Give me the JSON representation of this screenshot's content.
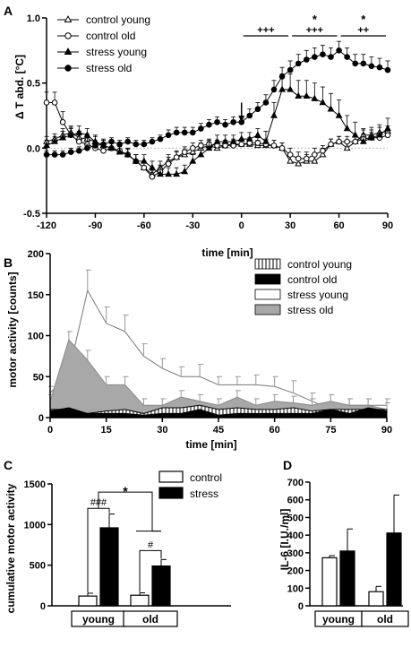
{
  "panel_labels": {
    "a": "A",
    "b": "B",
    "c": "C",
    "d": "D"
  },
  "chart_data": [
    {
      "id": "A",
      "type": "line",
      "xlabel": "time [min]",
      "ylabel": "Δ T abd. [°C]",
      "xlim": [
        -120,
        90
      ],
      "ylim": [
        -0.5,
        1.0
      ],
      "x_ticks": [
        "-120",
        "-90",
        "-60",
        "-30",
        "0",
        "30",
        "60",
        "90"
      ],
      "y_ticks": [
        "-0.5",
        "0.0",
        "0.5",
        "1.0"
      ],
      "x": [
        -120,
        -115,
        -110,
        -105,
        -100,
        -95,
        -90,
        -85,
        -80,
        -75,
        -70,
        -65,
        -60,
        -55,
        -50,
        -45,
        -40,
        -35,
        -30,
        -25,
        -20,
        -15,
        -10,
        -5,
        0,
        5,
        10,
        15,
        20,
        25,
        30,
        35,
        40,
        45,
        50,
        55,
        60,
        65,
        70,
        75,
        80,
        85,
        90
      ],
      "series": [
        {
          "name": "control young",
          "marker": "open-triangle",
          "values": [
            0.05,
            0.07,
            0.1,
            0.12,
            0.08,
            0.07,
            0.05,
            0.02,
            0.0,
            -0.03,
            -0.05,
            -0.1,
            -0.15,
            -0.2,
            -0.15,
            -0.1,
            -0.07,
            -0.05,
            -0.03,
            0.0,
            0.02,
            0.0,
            0.02,
            0.03,
            0.03,
            0.03,
            0.02,
            0.02,
            0.02,
            0.0,
            -0.1,
            -0.12,
            -0.1,
            -0.1,
            -0.05,
            0.03,
            0.05,
            0.0,
            0.05,
            0.1,
            0.1,
            0.12,
            0.13
          ],
          "errors": [
            0.04,
            0.04,
            0.05,
            0.05,
            0.05,
            0.04,
            0.04,
            0.04,
            0.04,
            0.04,
            0.04,
            0.05,
            0.05,
            0.05,
            0.05,
            0.05,
            0.04,
            0.04,
            0.04,
            0.04,
            0.04,
            0.04,
            0.04,
            0.04,
            0.04,
            0.04,
            0.04,
            0.04,
            0.04,
            0.04,
            0.05,
            0.05,
            0.05,
            0.05,
            0.05,
            0.04,
            0.04,
            0.04,
            0.04,
            0.04,
            0.04,
            0.04,
            0.04
          ]
        },
        {
          "name": "control old",
          "marker": "open-circle",
          "values": [
            0.35,
            0.35,
            0.2,
            0.1,
            0.05,
            0.03,
            0.0,
            -0.02,
            0.0,
            -0.02,
            -0.05,
            -0.1,
            -0.15,
            -0.22,
            -0.18,
            -0.12,
            -0.07,
            -0.03,
            0.0,
            0.02,
            0.03,
            0.02,
            0.02,
            0.02,
            0.03,
            0.04,
            0.04,
            0.03,
            0.02,
            0.0,
            -0.05,
            -0.08,
            -0.08,
            -0.05,
            -0.02,
            0.03,
            0.05,
            0.05,
            0.05,
            0.07,
            0.08,
            0.08,
            0.1
          ],
          "errors": [
            0.08,
            0.08,
            0.08,
            0.06,
            0.05,
            0.05,
            0.05,
            0.05,
            0.05,
            0.05,
            0.05,
            0.05,
            0.05,
            0.05,
            0.05,
            0.05,
            0.05,
            0.04,
            0.04,
            0.04,
            0.04,
            0.04,
            0.04,
            0.04,
            0.04,
            0.04,
            0.04,
            0.04,
            0.04,
            0.04,
            0.05,
            0.05,
            0.05,
            0.05,
            0.04,
            0.04,
            0.04,
            0.04,
            0.04,
            0.04,
            0.04,
            0.04,
            0.04
          ]
        },
        {
          "name": "stress young",
          "marker": "filled-triangle",
          "values": [
            0.02,
            0.05,
            0.08,
            0.1,
            0.12,
            0.1,
            0.05,
            0.02,
            0.0,
            -0.03,
            -0.05,
            -0.1,
            -0.1,
            -0.15,
            -0.2,
            -0.2,
            -0.2,
            -0.18,
            -0.1,
            -0.05,
            0.0,
            0.05,
            0.05,
            0.05,
            0.07,
            0.07,
            0.1,
            0.05,
            0.25,
            0.45,
            0.45,
            0.4,
            0.4,
            0.38,
            0.35,
            0.3,
            0.25,
            0.15,
            0.1,
            0.05,
            0.08,
            0.1,
            0.15
          ],
          "errors": [
            0.04,
            0.04,
            0.05,
            0.05,
            0.05,
            0.05,
            0.05,
            0.05,
            0.05,
            0.05,
            0.05,
            0.05,
            0.05,
            0.05,
            0.05,
            0.05,
            0.05,
            0.05,
            0.05,
            0.05,
            0.05,
            0.05,
            0.05,
            0.05,
            0.05,
            0.05,
            0.05,
            0.08,
            0.1,
            0.12,
            0.12,
            0.12,
            0.12,
            0.12,
            0.12,
            0.12,
            0.12,
            0.1,
            0.1,
            0.1,
            0.08,
            0.08,
            0.08
          ]
        },
        {
          "name": "stress old",
          "marker": "filled-circle",
          "values": [
            -0.05,
            -0.05,
            -0.05,
            -0.03,
            -0.02,
            0.0,
            0.02,
            0.03,
            0.05,
            0.03,
            0.05,
            0.03,
            0.03,
            0.05,
            0.07,
            0.1,
            0.12,
            0.12,
            0.12,
            0.15,
            0.18,
            0.2,
            0.18,
            0.2,
            0.2,
            0.25,
            0.3,
            0.35,
            0.45,
            0.55,
            0.6,
            0.65,
            0.68,
            0.7,
            0.72,
            0.7,
            0.75,
            0.7,
            0.65,
            0.65,
            0.63,
            0.62,
            0.6
          ],
          "errors": [
            0.03,
            0.03,
            0.03,
            0.03,
            0.03,
            0.03,
            0.03,
            0.03,
            0.03,
            0.03,
            0.03,
            0.03,
            0.03,
            0.03,
            0.03,
            0.04,
            0.04,
            0.04,
            0.04,
            0.04,
            0.04,
            0.04,
            0.04,
            0.04,
            0.04,
            0.05,
            0.05,
            0.06,
            0.07,
            0.07,
            0.07,
            0.07,
            0.07,
            0.07,
            0.07,
            0.07,
            0.07,
            0.07,
            0.07,
            0.07,
            0.07,
            0.07,
            0.07
          ]
        }
      ],
      "annotations": [
        {
          "x_range": [
            0,
            30
          ],
          "stars": "",
          "marks": "+++"
        },
        {
          "x_range": [
            30,
            60
          ],
          "stars": "*",
          "marks": "+++"
        },
        {
          "x_range": [
            60,
            90
          ],
          "stars": "*",
          "marks": "++"
        }
      ],
      "arrow_at_x": 0,
      "legend_position": "top-left"
    },
    {
      "id": "B",
      "type": "area",
      "xlabel": "time [min]",
      "ylabel": "motor activity [counts]",
      "xlim": [
        0,
        90
      ],
      "ylim": [
        0,
        200
      ],
      "x_ticks": [
        "0",
        "15",
        "30",
        "45",
        "60",
        "75",
        "90"
      ],
      "y_ticks": [
        "0",
        "50",
        "100",
        "150",
        "200"
      ],
      "x": [
        0,
        5,
        10,
        15,
        20,
        25,
        30,
        35,
        40,
        45,
        50,
        55,
        60,
        65,
        70,
        75,
        80,
        85,
        90
      ],
      "series": [
        {
          "name": "control young",
          "fill": "hatched",
          "values": [
            10,
            10,
            5,
            8,
            10,
            5,
            12,
            12,
            15,
            10,
            12,
            10,
            10,
            12,
            8,
            10,
            10,
            10,
            10
          ],
          "errors": [
            4,
            4,
            3,
            4,
            4,
            3,
            4,
            4,
            5,
            4,
            4,
            4,
            4,
            4,
            3,
            4,
            4,
            4,
            4
          ]
        },
        {
          "name": "control old",
          "fill": "#000000",
          "values": [
            8,
            12,
            5,
            5,
            5,
            3,
            5,
            5,
            10,
            3,
            5,
            5,
            5,
            5,
            5,
            10,
            5,
            12,
            8
          ],
          "errors": [
            3,
            4,
            2,
            2,
            2,
            2,
            2,
            2,
            4,
            2,
            2,
            2,
            2,
            2,
            2,
            4,
            2,
            4,
            3
          ]
        },
        {
          "name": "stress young",
          "fill": "#ffffff",
          "values": [
            30,
            55,
            155,
            115,
            105,
            75,
            60,
            50,
            50,
            40,
            40,
            40,
            38,
            30,
            20,
            10,
            15,
            15,
            15
          ],
          "errors": [
            8,
            15,
            25,
            20,
            20,
            15,
            12,
            12,
            15,
            10,
            10,
            12,
            12,
            15,
            10,
            8,
            8,
            8,
            8
          ]
        },
        {
          "name": "stress old",
          "fill": "#a8a8a8",
          "values": [
            20,
            95,
            70,
            40,
            40,
            15,
            15,
            25,
            20,
            15,
            25,
            15,
            20,
            18,
            15,
            20,
            15,
            15,
            10
          ],
          "errors": [
            8,
            10,
            12,
            10,
            10,
            8,
            8,
            8,
            8,
            8,
            8,
            8,
            8,
            8,
            8,
            8,
            8,
            8,
            8
          ]
        }
      ],
      "legend_position": "top-right"
    },
    {
      "id": "C",
      "type": "bar",
      "ylabel": "cumulative motor activity",
      "ylim": [
        0,
        1500
      ],
      "y_ticks": [
        "0",
        "500",
        "1000",
        "1500"
      ],
      "groups": [
        "young",
        "old"
      ],
      "series": [
        {
          "name": "control",
          "fill": "#ffffff",
          "values": [
            120,
            130
          ],
          "errors": [
            35,
            30
          ]
        },
        {
          "name": "stress",
          "fill": "#000000",
          "values": [
            960,
            490
          ],
          "errors": [
            170,
            80
          ]
        }
      ],
      "annotations": [
        {
          "label": "###",
          "between": "young"
        },
        {
          "label": "#",
          "between": "old"
        },
        {
          "label": "*",
          "between": "young-old"
        }
      ],
      "legend_position": "top-right"
    },
    {
      "id": "D",
      "type": "bar",
      "ylabel": "IL-6 [I.U./ml]",
      "ylim": [
        0,
        700
      ],
      "y_ticks": [
        "0",
        "100",
        "200",
        "300",
        "400",
        "500",
        "600",
        "700"
      ],
      "groups": [
        "young",
        "old"
      ],
      "series": [
        {
          "name": "control",
          "fill": "#ffffff",
          "values": [
            272,
            80
          ],
          "errors": [
            12,
            30
          ]
        },
        {
          "name": "stress",
          "fill": "#000000",
          "values": [
            310,
            412
          ],
          "errors": [
            125,
            215
          ]
        }
      ]
    }
  ]
}
